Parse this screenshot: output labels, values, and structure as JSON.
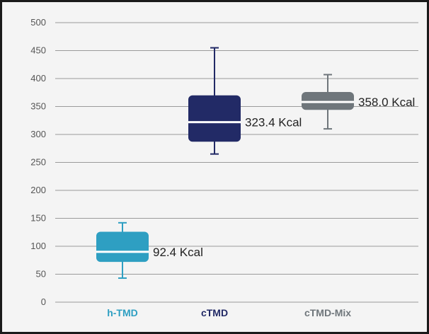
{
  "chart_data": {
    "type": "box",
    "title": "",
    "xlabel": "",
    "ylabel": "",
    "ylim": [
      0,
      500
    ],
    "yticks": [
      0,
      50,
      100,
      150,
      200,
      250,
      300,
      350,
      400,
      450,
      500
    ],
    "grid": true,
    "legend": "none",
    "categories": [
      {
        "name": "h-TMD",
        "color": "#2e9fc2"
      },
      {
        "name": "cTMD",
        "color": "#222a66"
      },
      {
        "name": "cTMD-Mix",
        "color": "#6f767b"
      }
    ],
    "boxes": [
      {
        "category": "h-TMD",
        "min": 43,
        "q1": 72,
        "median": 90,
        "q3": 126,
        "max": 142,
        "annotation": "92.4 Kcal"
      },
      {
        "category": "cTMD",
        "min": 265,
        "q1": 287,
        "median": 322,
        "q3": 370,
        "max": 455,
        "annotation": "323.4 Kcal"
      },
      {
        "category": "cTMD-Mix",
        "min": 310,
        "q1": 344,
        "median": 358,
        "q3": 376,
        "max": 407,
        "annotation": "358.0 Kcal"
      }
    ]
  }
}
